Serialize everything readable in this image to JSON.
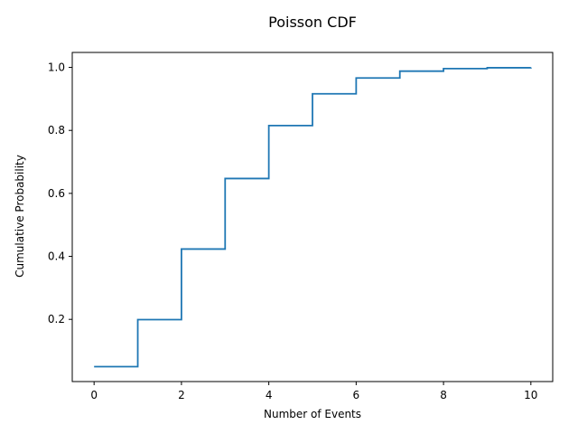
{
  "chart_data": {
    "type": "line",
    "step": "post",
    "title": "Poisson CDF",
    "xlabel": "Number of Events",
    "ylabel": "Cumulative Probability",
    "x": [
      0,
      1,
      2,
      3,
      4,
      5,
      6,
      7,
      8,
      9,
      10
    ],
    "y": [
      0.0498,
      0.1991,
      0.4232,
      0.6472,
      0.8153,
      0.9161,
      0.9665,
      0.9881,
      0.9962,
      0.9989,
      0.9997
    ],
    "xlim": [
      -0.5,
      10.5
    ],
    "ylim": [
      0.0025,
      1.0475
    ],
    "xticks": [
      0,
      2,
      4,
      6,
      8,
      10
    ],
    "yticks": [
      0.2,
      0.4,
      0.6,
      0.8,
      1.0
    ],
    "xtick_labels": [
      "0",
      "2",
      "4",
      "6",
      "8",
      "10"
    ],
    "ytick_labels": [
      "0.2",
      "0.4",
      "0.6",
      "0.8",
      "1.0"
    ],
    "line_color": "#1f77b4",
    "grid": false,
    "legend": "none"
  }
}
